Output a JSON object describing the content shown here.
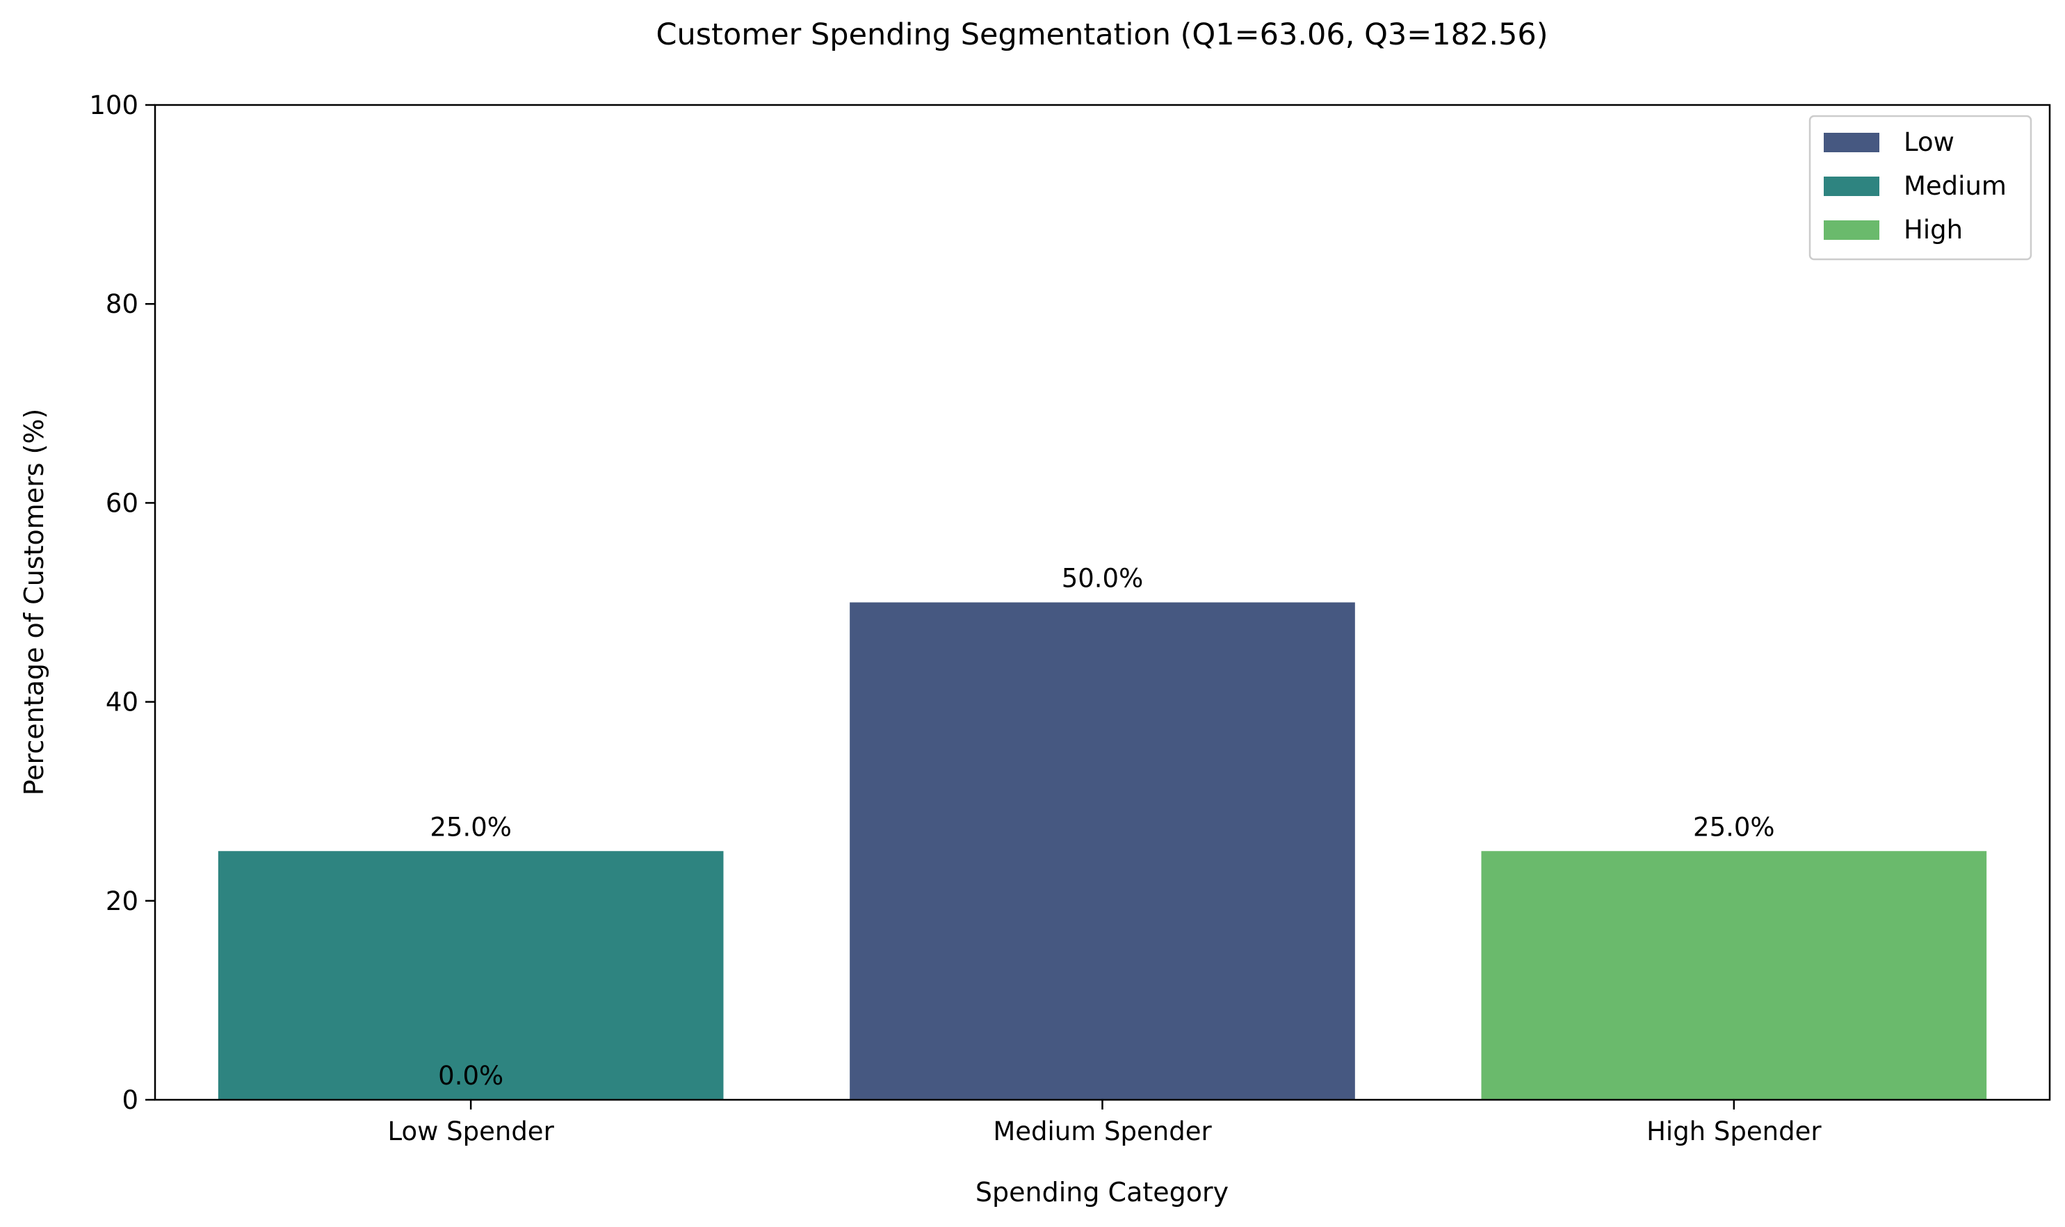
{
  "chart_data": {
    "type": "bar",
    "title": "Customer Spending Segmentation (Q1=63.06, Q3=182.56)",
    "xlabel": "Spending Category",
    "ylabel": "Percentage of Customers (%)",
    "ylim": [
      0,
      100
    ],
    "yticks": [
      0,
      20,
      40,
      60,
      80,
      100
    ],
    "categories": [
      "Low Spender",
      "Medium Spender",
      "High Spender"
    ],
    "bars": [
      {
        "category": "Low Spender",
        "value": 25.0,
        "hue": "Medium",
        "label": "25.0%"
      },
      {
        "category": "Medium Spender",
        "value": 50.0,
        "hue": "Low",
        "label": "50.0%"
      },
      {
        "category": "High Spender",
        "value": 25.0,
        "hue": "High",
        "label": "25.0%"
      }
    ],
    "extra_labels": [
      {
        "category": "Low Spender",
        "value": 0.0,
        "label": "0.0%"
      }
    ],
    "legend": {
      "placement": "top-right",
      "entries": [
        {
          "name": "Low",
          "color": "#465881"
        },
        {
          "name": "Medium",
          "color": "#2e8480"
        },
        {
          "name": "High",
          "color": "#6aba6c"
        }
      ]
    },
    "grid": false
  }
}
